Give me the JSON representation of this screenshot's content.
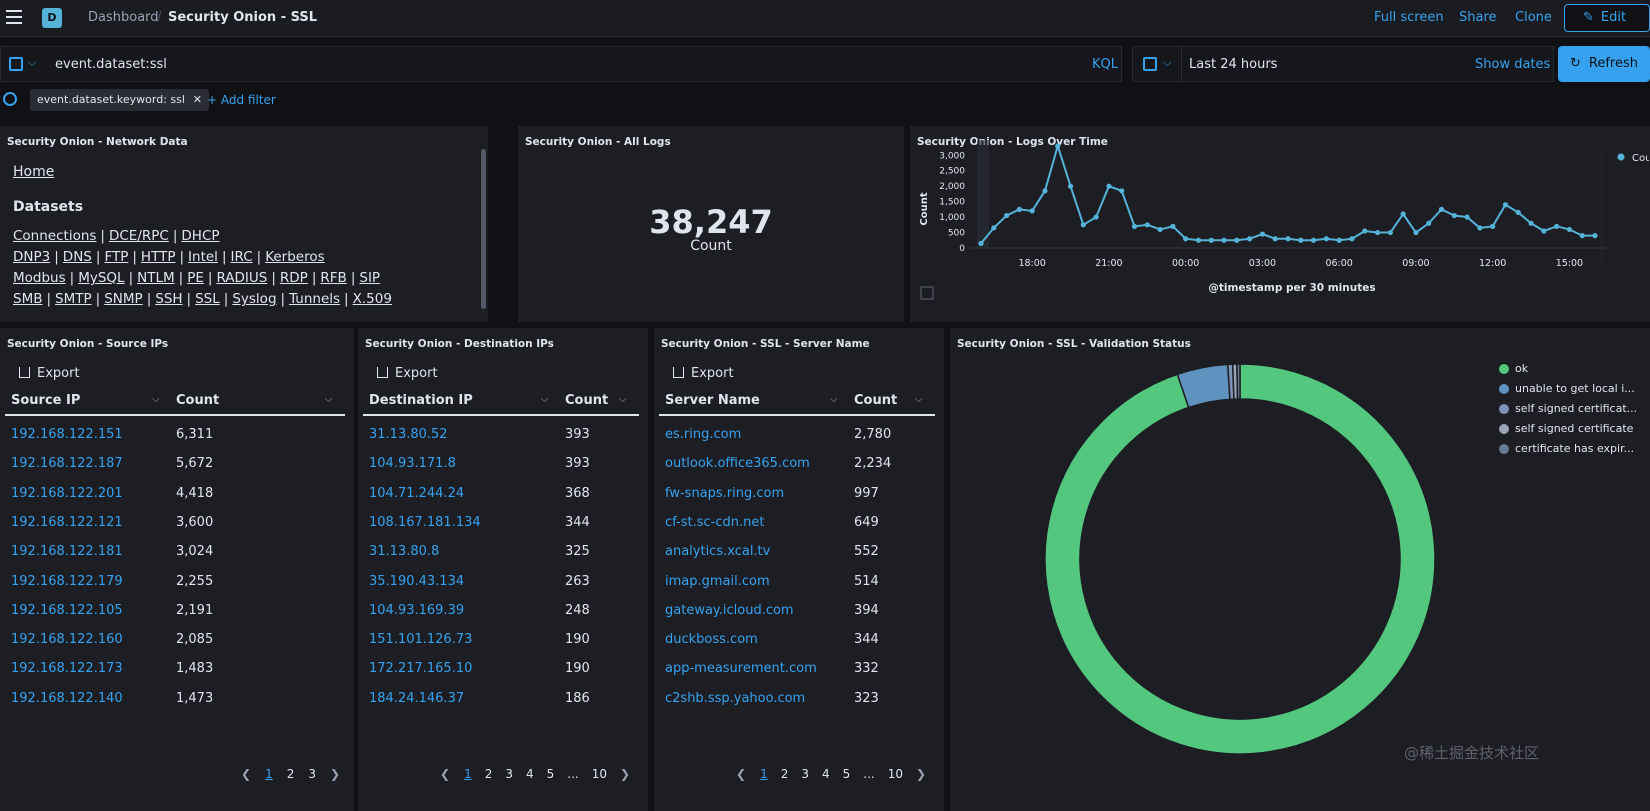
{
  "header": {
    "logo_letter": "D",
    "breadcrumb_root": "Dashboard",
    "breadcrumb_sep": "/",
    "title": "Security Onion - SSL",
    "links": {
      "fullscreen": "Full screen",
      "share": "Share",
      "clone": "Clone"
    },
    "edit_label": "Edit"
  },
  "query": {
    "value": "event.dataset:ssl",
    "language": "KQL",
    "date_range": "Last 24 hours",
    "show_dates": "Show dates",
    "refresh_label": "Refresh"
  },
  "filters": {
    "pills": [
      "event.dataset.keyword: ssl"
    ],
    "add_label": "+ Add filter"
  },
  "network_data": {
    "title": "Security Onion - Network Data",
    "home": "Home",
    "datasets_heading": "Datasets",
    "rows": [
      [
        "Connections",
        "DCE/RPC",
        "DHCP"
      ],
      [
        "DNP3",
        "DNS",
        "FTP",
        "HTTP",
        "Intel",
        "IRC",
        "Kerberos"
      ],
      [
        "Modbus",
        "MySQL",
        "NTLM",
        "PE",
        "RADIUS",
        "RDP",
        "RFB",
        "SIP"
      ],
      [
        "SMB",
        "SMTP",
        "SNMP",
        "SSH",
        "SSL",
        "Syslog",
        "Tunnels",
        "X.509"
      ]
    ]
  },
  "all_logs": {
    "title": "Security Onion - All Logs",
    "value": "38,247",
    "label": "Count"
  },
  "logs_over_time": {
    "title": "Security Onion - Logs Over Time",
    "legend": "Count",
    "chart_data": {
      "type": "line",
      "title": "Security Onion - Logs Over Time",
      "xlabel": "@timestamp per 30 minutes",
      "ylabel": "Count",
      "ylim": [
        0,
        3300
      ],
      "yticks": [
        0,
        500,
        1000,
        1500,
        2000,
        2500,
        3000
      ],
      "ytick_labels": [
        "0",
        "500",
        "1,000",
        "1,500",
        "2,000",
        "2,500",
        "3,000"
      ],
      "xtick_labels": [
        "18:00",
        "21:00",
        "00:00",
        "03:00",
        "06:00",
        "09:00",
        "12:00",
        "15:00"
      ],
      "xtick_index": [
        4,
        10,
        16,
        22,
        28,
        34,
        40,
        46
      ],
      "series": [
        {
          "name": "Count",
          "values": [
            150,
            650,
            1050,
            1250,
            1200,
            1850,
            3300,
            2000,
            750,
            1000,
            2000,
            1850,
            700,
            750,
            600,
            700,
            300,
            250,
            250,
            250,
            250,
            300,
            450,
            300,
            300,
            250,
            250,
            300,
            250,
            300,
            550,
            500,
            500,
            1100,
            500,
            800,
            1250,
            1050,
            1000,
            650,
            700,
            1400,
            1150,
            800,
            550,
            700,
            600,
            400,
            400
          ]
        }
      ]
    }
  },
  "source_ips": {
    "title": "Security Onion - Source IPs",
    "export": "Export",
    "col_key": "Source IP",
    "col_val": "Count",
    "rows": [
      [
        "192.168.122.151",
        "6,311"
      ],
      [
        "192.168.122.187",
        "5,672"
      ],
      [
        "192.168.122.201",
        "4,418"
      ],
      [
        "192.168.122.121",
        "3,600"
      ],
      [
        "192.168.122.181",
        "3,024"
      ],
      [
        "192.168.122.179",
        "2,255"
      ],
      [
        "192.168.122.105",
        "2,191"
      ],
      [
        "192.168.122.160",
        "2,085"
      ],
      [
        "192.168.122.173",
        "1,483"
      ],
      [
        "192.168.122.140",
        "1,473"
      ]
    ],
    "pages": [
      "1",
      "2",
      "3"
    ]
  },
  "dest_ips": {
    "title": "Security Onion - Destination IPs",
    "export": "Export",
    "col_key": "Destination IP",
    "col_val": "Count",
    "rows": [
      [
        "31.13.80.52",
        "393"
      ],
      [
        "104.93.171.8",
        "393"
      ],
      [
        "104.71.244.24",
        "368"
      ],
      [
        "108.167.181.134",
        "344"
      ],
      [
        "31.13.80.8",
        "325"
      ],
      [
        "35.190.43.134",
        "263"
      ],
      [
        "104.93.169.39",
        "248"
      ],
      [
        "151.101.126.73",
        "190"
      ],
      [
        "172.217.165.10",
        "190"
      ],
      [
        "184.24.146.37",
        "186"
      ]
    ],
    "pages": [
      "1",
      "2",
      "3",
      "4",
      "5",
      "...",
      "10"
    ]
  },
  "server_names": {
    "title": "Security Onion - SSL - Server Name",
    "export": "Export",
    "col_key": "Server Name",
    "col_val": "Count",
    "rows": [
      [
        "es.ring.com",
        "2,780"
      ],
      [
        "outlook.office365.com",
        "2,234"
      ],
      [
        "fw-snaps.ring.com",
        "997"
      ],
      [
        "cf-st.sc-cdn.net",
        "649"
      ],
      [
        "analytics.xcal.tv",
        "552"
      ],
      [
        "imap.gmail.com",
        "514"
      ],
      [
        "gateway.icloud.com",
        "394"
      ],
      [
        "duckboss.com",
        "344"
      ],
      [
        "app-measurement.com",
        "332"
      ],
      [
        "c2shb.ssp.yahoo.com",
        "323"
      ]
    ],
    "pages": [
      "1",
      "2",
      "3",
      "4",
      "5",
      "...",
      "10"
    ]
  },
  "validation": {
    "title": "Security Onion - SSL - Validation Status",
    "chart_data": {
      "type": "pie",
      "title": "Security Onion - SSL - Validation Status",
      "categories": [
        "ok",
        "unable to get local i...",
        "self signed certificat...",
        "self signed certificate",
        "certificate has expir..."
      ],
      "values": [
        94.8,
        4.2,
        0.4,
        0.35,
        0.25
      ],
      "colors": [
        "#54c77e",
        "#6092c0",
        "#7e93b5",
        "#9aa4b8",
        "#6a7b96"
      ]
    }
  },
  "watermark": "@稀土掘金技术社区"
}
